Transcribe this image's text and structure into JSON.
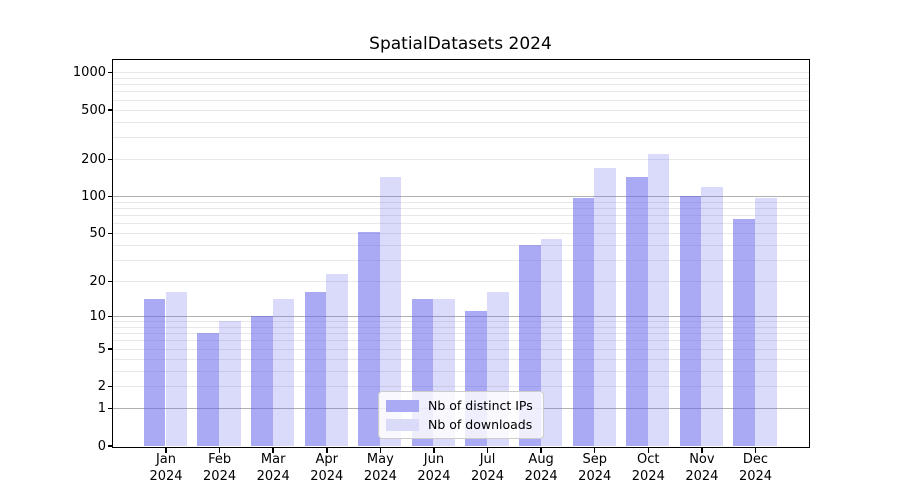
{
  "chart_data": {
    "type": "bar",
    "title": "SpatialDatasets 2024",
    "x_months": [
      "Jan",
      "Feb",
      "Mar",
      "Apr",
      "May",
      "Jun",
      "Jul",
      "Aug",
      "Sep",
      "Oct",
      "Nov",
      "Dec"
    ],
    "x_year": "2024",
    "series": [
      {
        "name": "Nb of distinct IPs",
        "legend_color": "#a9a9f4",
        "fill": "rgba(99,99,235,0.55)",
        "values": [
          14,
          7,
          10,
          16,
          51,
          14,
          11,
          40,
          97,
          143,
          100,
          65
        ]
      },
      {
        "name": "Nb of downloads",
        "legend_color": "#dadaf9",
        "fill": "rgba(99,99,235,0.24)",
        "values": [
          16,
          9,
          14,
          23,
          143,
          14,
          16,
          45,
          170,
          220,
          119,
          97
        ]
      }
    ],
    "yscale": "log1p",
    "ylim": [
      0,
      1255
    ],
    "yticks": [
      0,
      1,
      2,
      5,
      10,
      20,
      50,
      100,
      200,
      500,
      1000
    ],
    "major_gridlines": [
      1,
      10,
      100
    ],
    "minor_gridlines": [
      2,
      3,
      4,
      5,
      6,
      7,
      8,
      9,
      20,
      30,
      40,
      50,
      60,
      70,
      80,
      90,
      200,
      300,
      400,
      500,
      600,
      700,
      800,
      900,
      1000
    ],
    "grid_major_color": "#b1b1b1",
    "grid_minor_color": "#e8e8e8",
    "legend_position": "lower center"
  }
}
